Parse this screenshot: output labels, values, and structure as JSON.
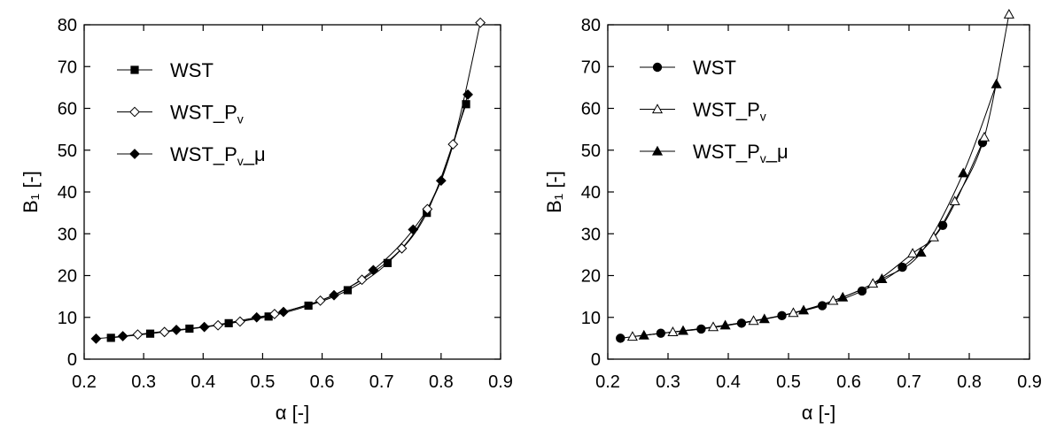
{
  "chart_data": [
    {
      "type": "line",
      "title": "",
      "xlabel": "α [-]",
      "ylabel": "B₁ [-]",
      "xlim": [
        0.2,
        0.9
      ],
      "ylim": [
        0,
        80
      ],
      "xticks": [
        "0.2",
        "0.3",
        "0.4",
        "0.5",
        "0.6",
        "0.7",
        "0.8",
        "0.9"
      ],
      "yticks": [
        "0",
        "10",
        "20",
        "30",
        "40",
        "50",
        "60",
        "70",
        "80"
      ],
      "grid": false,
      "legend_position": "top-left",
      "series": [
        {
          "name": "WST",
          "marker": "square-filled",
          "x": [
            0.245,
            0.311,
            0.377,
            0.443,
            0.51,
            0.577,
            0.643,
            0.71,
            0.776,
            0.842
          ],
          "y": [
            5.1,
            6.1,
            7.3,
            8.6,
            10.2,
            12.8,
            16.5,
            23.0,
            35.0,
            61.0
          ]
        },
        {
          "name": "WST_Pv",
          "marker": "diamond-open",
          "x": [
            0.29,
            0.335,
            0.425,
            0.462,
            0.52,
            0.597,
            0.667,
            0.734,
            0.777,
            0.82,
            0.866
          ],
          "y": [
            5.9,
            6.5,
            8.1,
            9.0,
            10.8,
            14.0,
            19.0,
            26.5,
            35.9,
            51.4,
            80.5
          ]
        },
        {
          "name": "WST_Pv_μ",
          "marker": "diamond-filled",
          "x": [
            0.22,
            0.265,
            0.355,
            0.402,
            0.49,
            0.535,
            0.62,
            0.686,
            0.753,
            0.8,
            0.845
          ],
          "y": [
            4.9,
            5.5,
            7.0,
            7.7,
            10.0,
            11.3,
            15.3,
            21.3,
            31.0,
            42.7,
            63.3
          ]
        }
      ]
    },
    {
      "type": "line",
      "title": "",
      "xlabel": "α [-]",
      "ylabel": "B₁ [-]",
      "xlim": [
        0.2,
        0.9
      ],
      "ylim": [
        0,
        80
      ],
      "xticks": [
        "0.2",
        "0.3",
        "0.4",
        "0.5",
        "0.6",
        "0.7",
        "0.8",
        "0.9"
      ],
      "yticks": [
        "0",
        "10",
        "20",
        "30",
        "40",
        "50",
        "60",
        "70",
        "80"
      ],
      "grid": false,
      "legend_position": "top-left",
      "series": [
        {
          "name": "WST",
          "marker": "circle-filled",
          "x": [
            0.221,
            0.288,
            0.355,
            0.422,
            0.489,
            0.556,
            0.622,
            0.689,
            0.756,
            0.822
          ],
          "y": [
            5.0,
            6.2,
            7.2,
            8.6,
            10.4,
            12.8,
            16.3,
            22.0,
            32.0,
            51.8
          ]
        },
        {
          "name": "WST_Pv",
          "marker": "triangle-open",
          "x": [
            0.241,
            0.308,
            0.375,
            0.442,
            0.508,
            0.574,
            0.64,
            0.706,
            0.741,
            0.776,
            0.825,
            0.866
          ],
          "y": [
            5.4,
            6.5,
            7.7,
            9.2,
            11.1,
            14.0,
            18.1,
            25.3,
            29.2,
            37.8,
            53.1,
            82.5
          ]
        },
        {
          "name": "WST_Pv_μ",
          "marker": "triangle-filled",
          "x": [
            0.26,
            0.325,
            0.395,
            0.46,
            0.525,
            0.59,
            0.655,
            0.72,
            0.79,
            0.845
          ],
          "y": [
            5.7,
            6.8,
            8.1,
            9.6,
            11.7,
            14.8,
            19.2,
            25.5,
            44.5,
            65.8
          ]
        }
      ]
    }
  ]
}
